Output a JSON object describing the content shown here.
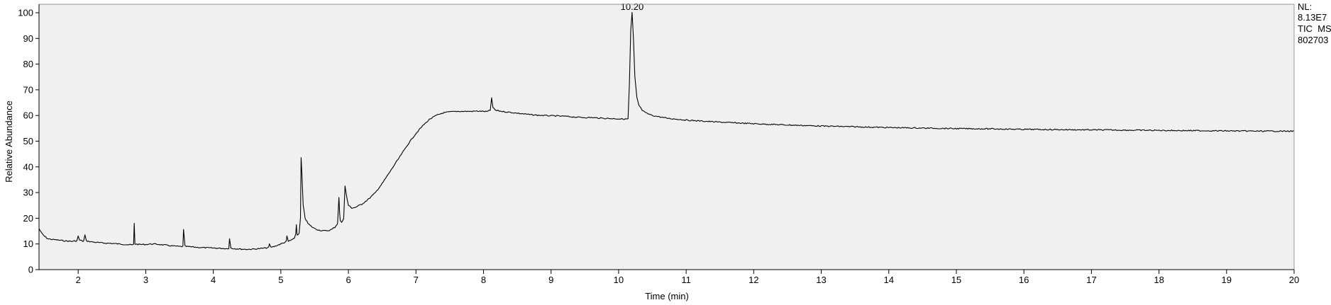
{
  "info": {
    "lines": [
      "NL:",
      "8.13E7",
      "TIC  MS",
      "802703"
    ]
  },
  "chart_data": {
    "type": "line",
    "title": "",
    "xlabel": "Time (min)",
    "ylabel": "Relative Abundance",
    "xlim": [
      1.42,
      20.0
    ],
    "ylim": [
      0,
      100
    ],
    "x_ticks": [
      2,
      3,
      4,
      5,
      6,
      7,
      8,
      9,
      10,
      11,
      12,
      13,
      14,
      15,
      16,
      17,
      18,
      19,
      20
    ],
    "y_ticks": [
      0,
      10,
      20,
      30,
      40,
      50,
      60,
      70,
      80,
      90,
      100
    ],
    "grid": false,
    "legend": "none",
    "colors": {
      "plot_bg": "#f0f0f0",
      "line": "#000000",
      "frame": "#999999"
    },
    "peak_labels": [
      {
        "x": 10.2,
        "y": 100,
        "text": "10.20"
      }
    ],
    "series": [
      {
        "points": [
          [
            1.42,
            16
          ],
          [
            1.45,
            14.5
          ],
          [
            1.5,
            13
          ],
          [
            1.55,
            12
          ],
          [
            1.6,
            11.8
          ],
          [
            1.7,
            11.5
          ],
          [
            1.8,
            11.2
          ],
          [
            1.9,
            11
          ],
          [
            1.98,
            11.2
          ],
          [
            2.0,
            13
          ],
          [
            2.02,
            11.5
          ],
          [
            2.08,
            11
          ],
          [
            2.1,
            13.5
          ],
          [
            2.12,
            11.2
          ],
          [
            2.2,
            10.8
          ],
          [
            2.3,
            10.5
          ],
          [
            2.4,
            10.3
          ],
          [
            2.5,
            10.2
          ],
          [
            2.6,
            10
          ],
          [
            2.7,
            9.8
          ],
          [
            2.8,
            9.6
          ],
          [
            2.82,
            9.8
          ],
          [
            2.83,
            18
          ],
          [
            2.84,
            10
          ],
          [
            2.9,
            9.8
          ],
          [
            3.0,
            9.8
          ],
          [
            3.1,
            10
          ],
          [
            3.2,
            9.8
          ],
          [
            3.3,
            9.5
          ],
          [
            3.4,
            9.2
          ],
          [
            3.5,
            9
          ],
          [
            3.55,
            9
          ],
          [
            3.56,
            15.5
          ],
          [
            3.58,
            9.2
          ],
          [
            3.6,
            9
          ],
          [
            3.7,
            8.8
          ],
          [
            3.8,
            8.6
          ],
          [
            3.9,
            8.5
          ],
          [
            4.0,
            8.4
          ],
          [
            4.1,
            8.3
          ],
          [
            4.2,
            8.2
          ],
          [
            4.23,
            8.3
          ],
          [
            4.24,
            12
          ],
          [
            4.26,
            8.4
          ],
          [
            4.3,
            8.2
          ],
          [
            4.4,
            8
          ],
          [
            4.5,
            7.9
          ],
          [
            4.6,
            8
          ],
          [
            4.7,
            8.2
          ],
          [
            4.8,
            8.5
          ],
          [
            4.82,
            8.6
          ],
          [
            4.83,
            10
          ],
          [
            4.85,
            8.7
          ],
          [
            4.9,
            9
          ],
          [
            4.95,
            9.5
          ],
          [
            5.0,
            10
          ],
          [
            5.05,
            10.5
          ],
          [
            5.08,
            11
          ],
          [
            5.09,
            13
          ],
          [
            5.11,
            11
          ],
          [
            5.15,
            11.5
          ],
          [
            5.2,
            12
          ],
          [
            5.22,
            14
          ],
          [
            5.23,
            17.5
          ],
          [
            5.24,
            13.5
          ],
          [
            5.27,
            14
          ],
          [
            5.29,
            20
          ],
          [
            5.3,
            43.5
          ],
          [
            5.31,
            38
          ],
          [
            5.33,
            25
          ],
          [
            5.36,
            20
          ],
          [
            5.4,
            18
          ],
          [
            5.45,
            16.8
          ],
          [
            5.5,
            16
          ],
          [
            5.55,
            15.5
          ],
          [
            5.6,
            15.2
          ],
          [
            5.65,
            15.1
          ],
          [
            5.7,
            15.2
          ],
          [
            5.75,
            15.6
          ],
          [
            5.8,
            16.5
          ],
          [
            5.84,
            18
          ],
          [
            5.86,
            28
          ],
          [
            5.87,
            22
          ],
          [
            5.88,
            19
          ],
          [
            5.9,
            18.5
          ],
          [
            5.93,
            20
          ],
          [
            5.95,
            32.5
          ],
          [
            5.97,
            29
          ],
          [
            6.0,
            25
          ],
          [
            6.05,
            24
          ],
          [
            6.1,
            24.2
          ],
          [
            6.2,
            25.5
          ],
          [
            6.3,
            27.5
          ],
          [
            6.4,
            30
          ],
          [
            6.5,
            33.5
          ],
          [
            6.6,
            37.5
          ],
          [
            6.7,
            41.5
          ],
          [
            6.8,
            45.5
          ],
          [
            6.9,
            49.5
          ],
          [
            7.0,
            53
          ],
          [
            7.1,
            56
          ],
          [
            7.2,
            58.5
          ],
          [
            7.3,
            60
          ],
          [
            7.4,
            61
          ],
          [
            7.5,
            61.4
          ],
          [
            7.6,
            61.6
          ],
          [
            7.7,
            61.6
          ],
          [
            7.8,
            61.6
          ],
          [
            7.9,
            61.7
          ],
          [
            8.0,
            61.6
          ],
          [
            8.05,
            61.5
          ],
          [
            8.1,
            62
          ],
          [
            8.12,
            67
          ],
          [
            8.14,
            63
          ],
          [
            8.18,
            62
          ],
          [
            8.25,
            61.7
          ],
          [
            8.3,
            61.5
          ],
          [
            8.4,
            61.2
          ],
          [
            8.5,
            60.9
          ],
          [
            8.6,
            60.6
          ],
          [
            8.7,
            60.3
          ],
          [
            8.8,
            60.1
          ],
          [
            8.9,
            60
          ],
          [
            9.0,
            59.9
          ],
          [
            9.1,
            59.8
          ],
          [
            9.2,
            59.7
          ],
          [
            9.3,
            59.5
          ],
          [
            9.4,
            59.3
          ],
          [
            9.5,
            59.2
          ],
          [
            9.6,
            59.2
          ],
          [
            9.7,
            59
          ],
          [
            9.8,
            58.9
          ],
          [
            9.9,
            58.8
          ],
          [
            10.0,
            58.7
          ],
          [
            10.1,
            58.6
          ],
          [
            10.14,
            58.7
          ],
          [
            10.16,
            72
          ],
          [
            10.18,
            93
          ],
          [
            10.2,
            100
          ],
          [
            10.22,
            90
          ],
          [
            10.24,
            75
          ],
          [
            10.27,
            67
          ],
          [
            10.3,
            64
          ],
          [
            10.35,
            62
          ],
          [
            10.4,
            61
          ],
          [
            10.5,
            60
          ],
          [
            10.6,
            59.5
          ],
          [
            10.7,
            59
          ],
          [
            10.8,
            58.7
          ],
          [
            10.9,
            58.5
          ],
          [
            11.0,
            58.2
          ],
          [
            11.25,
            57.8
          ],
          [
            11.5,
            57.4
          ],
          [
            11.75,
            57.1
          ],
          [
            12.0,
            56.8
          ],
          [
            12.5,
            56.3
          ],
          [
            13.0,
            55.9
          ],
          [
            13.5,
            55.6
          ],
          [
            14.0,
            55.3
          ],
          [
            14.5,
            55.1
          ],
          [
            15.0,
            54.9
          ],
          [
            15.5,
            54.8
          ],
          [
            16.0,
            54.6
          ],
          [
            16.5,
            54.5
          ],
          [
            17.0,
            54.4
          ],
          [
            17.5,
            54.3
          ],
          [
            18.0,
            54.2
          ],
          [
            18.5,
            54.1
          ],
          [
            19.0,
            54
          ],
          [
            19.5,
            53.9
          ],
          [
            20.0,
            53.9
          ]
        ]
      }
    ]
  }
}
